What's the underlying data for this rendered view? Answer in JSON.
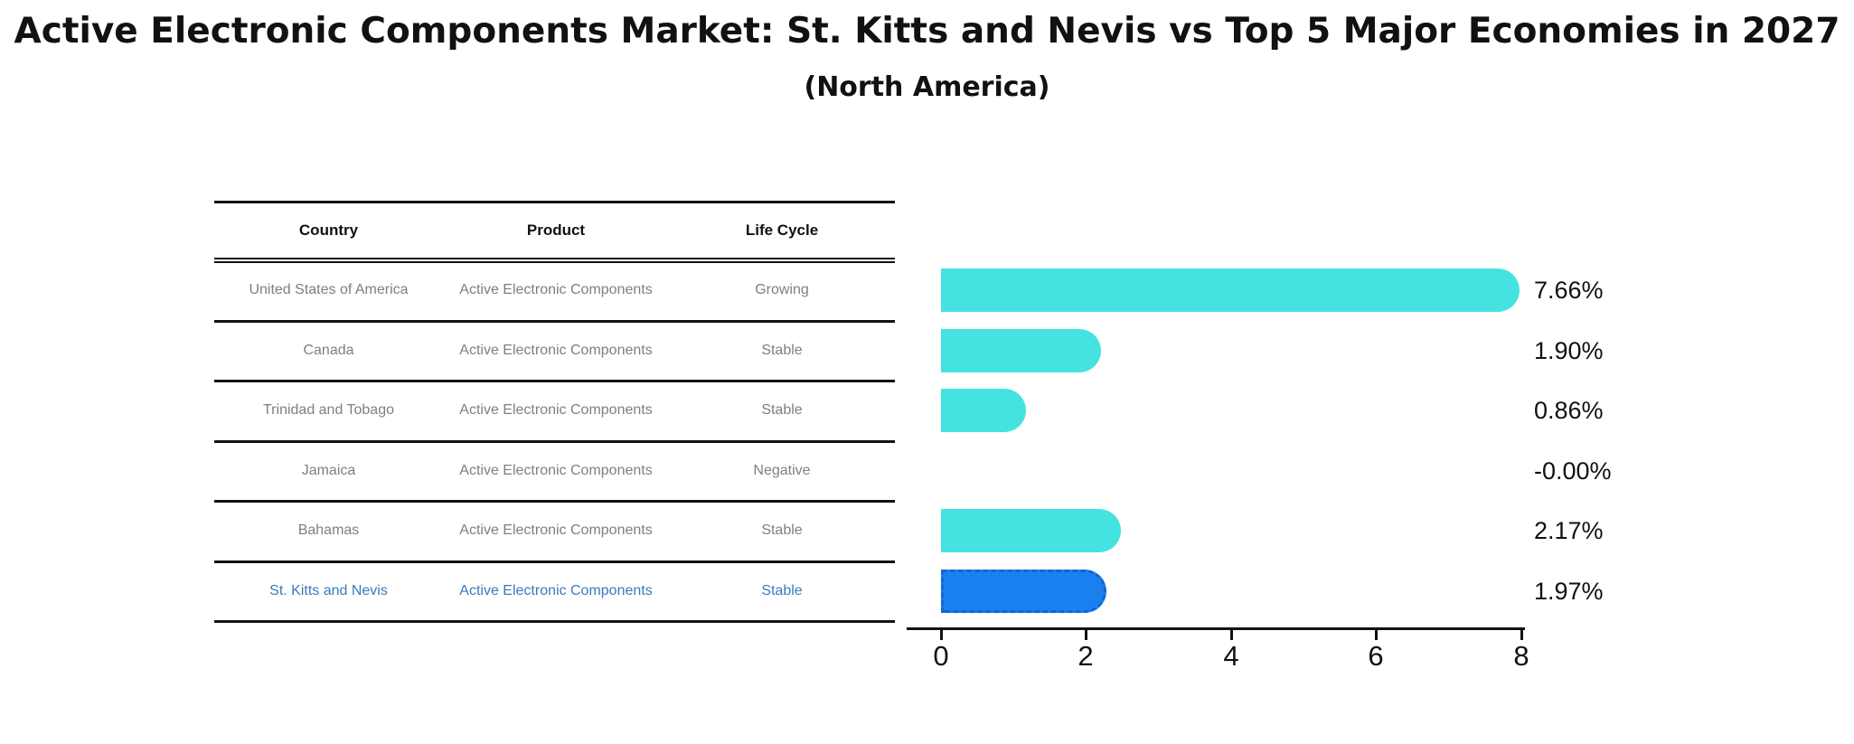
{
  "title": "Active Electronic Components Market: St. Kitts and Nevis vs Top 5 Major Economies in 2027",
  "subtitle": "(North America)",
  "table": {
    "headers": [
      "Country",
      "Product",
      "Life Cycle"
    ],
    "rows": [
      {
        "country": "United States of America",
        "product": "Active Electronic Components",
        "life_cycle": "Growing",
        "highlight": false
      },
      {
        "country": "Canada",
        "product": "Active Electronic Components",
        "life_cycle": "Stable",
        "highlight": false
      },
      {
        "country": "Trinidad and Tobago",
        "product": "Active Electronic Components",
        "life_cycle": "Stable",
        "highlight": false
      },
      {
        "country": "Jamaica",
        "product": "Active Electronic Components",
        "life_cycle": "Negative",
        "highlight": false
      },
      {
        "country": "Bahamas",
        "product": "Active Electronic Components",
        "life_cycle": "Stable",
        "highlight": false
      },
      {
        "country": "St. Kitts and Nevis",
        "product": "Active Electronic Components",
        "life_cycle": "Stable",
        "highlight": true
      }
    ]
  },
  "chart_data": {
    "type": "bar",
    "orientation": "horizontal",
    "categories": [
      "United States of America",
      "Canada",
      "Trinidad and Tobago",
      "Jamaica",
      "Bahamas",
      "St. Kitts and Nevis"
    ],
    "values": [
      7.66,
      1.9,
      0.86,
      -0.0,
      2.17,
      1.97
    ],
    "value_labels": [
      "7.66%",
      "1.90%",
      "0.86%",
      "-0.00%",
      "2.17%",
      "1.97%"
    ],
    "x_ticks": [
      "0",
      "2",
      "4",
      "6",
      "8"
    ],
    "xlim": [
      0,
      8
    ],
    "grid": false,
    "legend": false,
    "bar_color": "#45e3e0",
    "highlight_bar_color": "#1a80f0",
    "highlight_bar_border_color": "#1465d6",
    "highlight_index": 5,
    "highlight_text_color": "#3d7abc",
    "row_text_color": "#7f7f7f",
    "axis_color": "#111111"
  }
}
